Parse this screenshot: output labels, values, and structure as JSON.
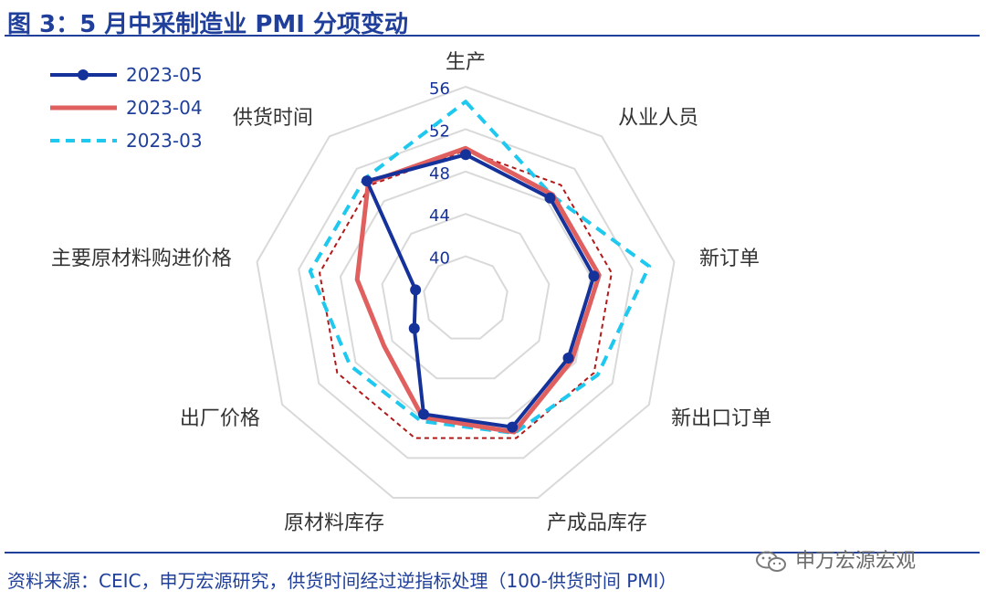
{
  "header": {
    "title": "图 3：5 月中采制造业 PMI 分项变动"
  },
  "footer": {
    "source": "资料来源：CEIC，申万宏源研究，供货时间经过逆指标处理（100-供货时间 PMI）",
    "watermark": "申万宏源宏观",
    "watermark_icon": "wechat-icon"
  },
  "chart_data": {
    "type": "radar",
    "title": "图 3：5 月中采制造业 PMI 分项变动",
    "categories": [
      "生产",
      "从业人员",
      "新订单",
      "新出口订单",
      "产成品库存",
      "原材料库存",
      "出厂价格",
      "主要原材料购进价格",
      "供货时间"
    ],
    "rlim": [
      36,
      56
    ],
    "ticks": [
      40,
      44,
      48,
      52,
      56
    ],
    "grid": true,
    "legend_position": "top-left",
    "series": [
      {
        "name": "2023-05",
        "color": "#15329a",
        "style": "solid-marker",
        "values": [
          49.6,
          48.4,
          48.3,
          47.2,
          48.9,
          47.6,
          41.6,
          40.8,
          50.5
        ]
      },
      {
        "name": "2023-04",
        "color": "#e06060",
        "style": "solid",
        "values": [
          50.2,
          48.8,
          48.8,
          47.6,
          49.4,
          47.9,
          44.9,
          46.4,
          50.3
        ]
      },
      {
        "name": "2023-03",
        "color": "#1ec8ef",
        "style": "dashed",
        "values": [
          54.6,
          48.7,
          53.6,
          50.4,
          49.5,
          48.3,
          48.6,
          50.9,
          50.8
        ]
      },
      {
        "name": "",
        "color": "#b21a1a",
        "style": "dotted",
        "show_in_legend": false,
        "values": [
          50.0,
          50.0,
          50.0,
          50.0,
          50.0,
          50.0,
          50.0,
          50.0,
          50.0
        ]
      }
    ]
  }
}
